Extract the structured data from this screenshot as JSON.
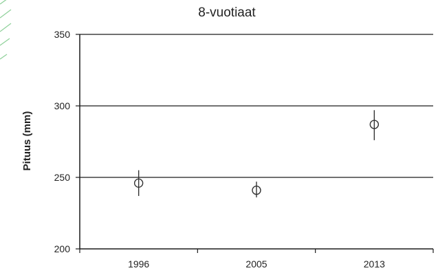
{
  "chart_data": {
    "type": "scatter",
    "title": "8-vuotiaat",
    "ylabel": "Pituus (mm)",
    "xlabel": "",
    "categories": [
      "1996",
      "2005",
      "2013"
    ],
    "series": [
      {
        "values": [
          246,
          241,
          287
        ],
        "error_low": [
          237,
          236,
          276
        ],
        "error_high": [
          255,
          247,
          297
        ]
      }
    ],
    "ylim": [
      200,
      350
    ],
    "yticks": [
      200,
      250,
      300,
      350
    ],
    "ytick_labels": [
      "200",
      "250",
      "300",
      "350"
    ],
    "grid": true,
    "legend": "none",
    "marker": "open-circle",
    "colors": {
      "marker": "#333333",
      "axis": "#1a1a1a",
      "accent": "#8fd19a"
    }
  }
}
